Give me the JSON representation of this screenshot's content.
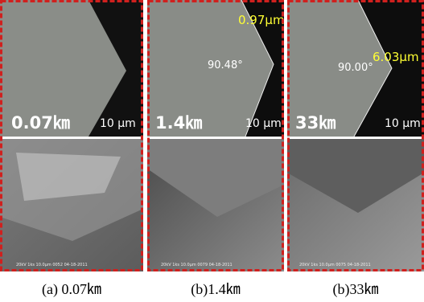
{
  "panels": [
    {
      "label": "0.07㎞",
      "scale": "10 μm",
      "sem_info": "20kV  1ks  10.0μm  0052  04-18-2011",
      "caption": "(a) 0.07㎞"
    },
    {
      "label": "1.4㎞",
      "scale": "10 μm",
      "measurement": "0.97μm",
      "angle": "90.48°",
      "sem_info": "20kV  1ks  10.0μm  0079  04-18-2011",
      "caption": "(b)1.4㎞"
    },
    {
      "label": "33㎞",
      "scale": "10 μm",
      "measurement": "6.03μm",
      "angle": "90.00°",
      "sem_info": "20kV  1ks  10.0μm  0075  04-18-2011",
      "caption": "(b)33㎞"
    }
  ]
}
